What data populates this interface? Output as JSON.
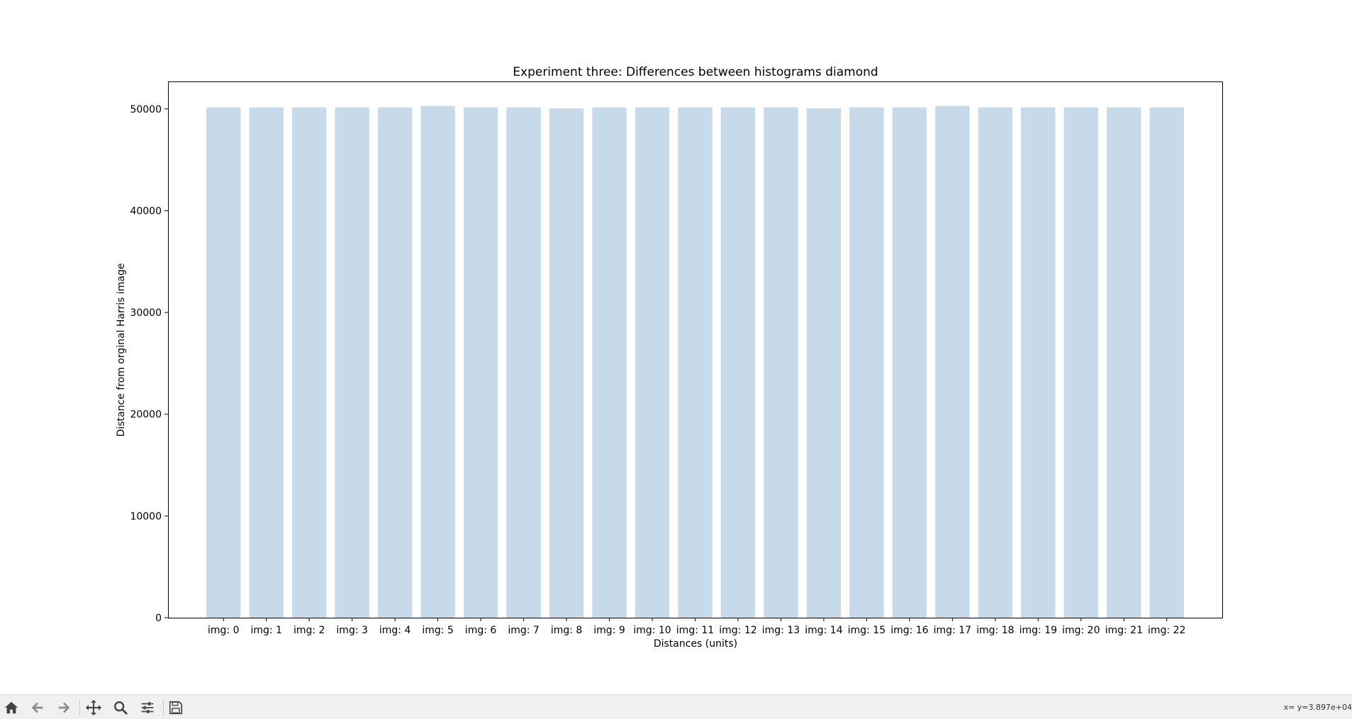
{
  "chart_data": {
    "type": "bar",
    "title": "Experiment three: Differences between histograms diamond",
    "xlabel": "Distances (units)",
    "ylabel": "Distance from orginal Harris image",
    "categories": [
      "img: 0",
      "img: 1",
      "img: 2",
      "img: 3",
      "img: 4",
      "img: 5",
      "img: 6",
      "img: 7",
      "img: 8",
      "img: 9",
      "img: 10",
      "img: 11",
      "img: 12",
      "img: 13",
      "img: 14",
      "img: 15",
      "img: 16",
      "img: 17",
      "img: 18",
      "img: 19",
      "img: 20",
      "img: 21",
      "img: 22"
    ],
    "values": [
      50150,
      50150,
      50150,
      50150,
      50150,
      50300,
      50150,
      50150,
      50050,
      50150,
      50150,
      50150,
      50150,
      50150,
      50050,
      50150,
      50150,
      50300,
      50150,
      50150,
      50150,
      50150,
      50150
    ],
    "ylim": [
      0,
      52700
    ],
    "yticks": [
      0,
      10000,
      20000,
      30000,
      40000,
      50000
    ],
    "ytick_labels": [
      "0",
      "10000",
      "20000",
      "30000",
      "40000",
      "50000"
    ],
    "bar_color": "#c6dae9",
    "grid": false
  },
  "toolbar": {
    "buttons": [
      {
        "name": "home-button",
        "icon": "home-icon"
      },
      {
        "name": "back-button",
        "icon": "arrow-left-icon"
      },
      {
        "name": "forward-button",
        "icon": "arrow-right-icon"
      },
      {
        "name": "pan-button",
        "icon": "move-icon"
      },
      {
        "name": "zoom-button",
        "icon": "magnifier-icon"
      },
      {
        "name": "configure-subplots-button",
        "icon": "sliders-icon"
      },
      {
        "name": "save-button",
        "icon": "floppy-disk-icon"
      }
    ],
    "coord_readout": "x= y=3.897e+04"
  }
}
